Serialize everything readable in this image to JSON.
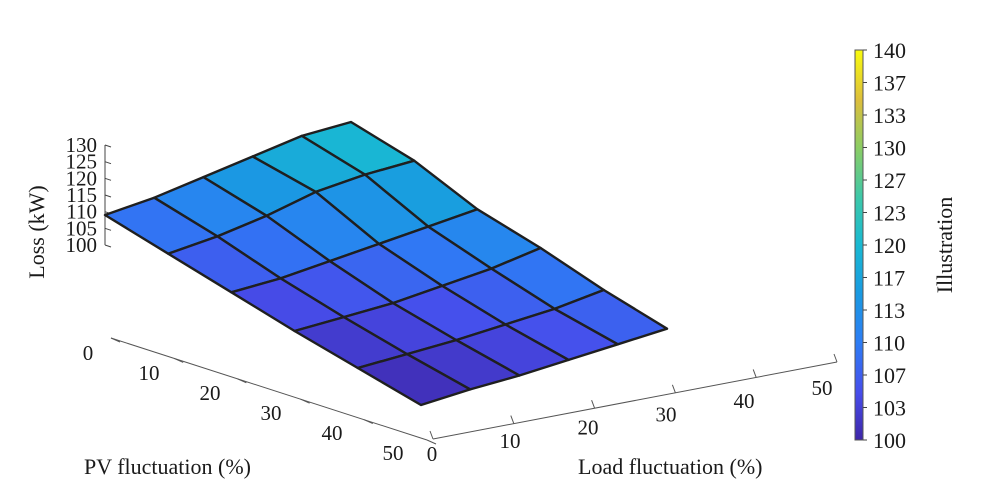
{
  "chart_data": {
    "type": "surface",
    "title": "",
    "xlabel": "PV fluctuation (%)",
    "ylabel": "Load fluctuation (%)",
    "zlabel": "Loss (kW)",
    "x": [
      0,
      10,
      20,
      30,
      40,
      50
    ],
    "y": [
      0,
      10,
      20,
      30,
      40,
      50
    ],
    "x_ticks": [
      "0",
      "10",
      "20",
      "30",
      "40",
      "50"
    ],
    "y_ticks": [
      "0",
      "10",
      "20",
      "30",
      "40",
      "50"
    ],
    "z_ticks": [
      "100",
      "105",
      "110",
      "115",
      "120",
      "125",
      "130"
    ],
    "zlim": [
      100,
      130
    ],
    "z": [
      [
        100.0,
        101.5,
        102.5,
        104.0,
        105.5,
        107.0
      ],
      [
        101.5,
        102.5,
        103.5,
        105.0,
        106.5,
        109.0
      ],
      [
        103.0,
        104.0,
        105.0,
        107.0,
        109.0,
        112.0
      ],
      [
        105.0,
        106.0,
        108.0,
        110.0,
        112.0,
        114.0
      ],
      [
        107.0,
        109.0,
        112.0,
        116.0,
        118.0,
        119.0
      ],
      [
        109.0,
        111.0,
        114.0,
        117.0,
        120.0,
        121.0
      ]
    ],
    "colorbar": {
      "label": "Illustration",
      "range": [
        100,
        140
      ],
      "ticks": [
        "100",
        "103",
        "107",
        "110",
        "113",
        "117",
        "120",
        "123",
        "127",
        "130",
        "133",
        "137",
        "140"
      ],
      "colormap": "parula"
    },
    "grid": false,
    "legend": "none"
  }
}
